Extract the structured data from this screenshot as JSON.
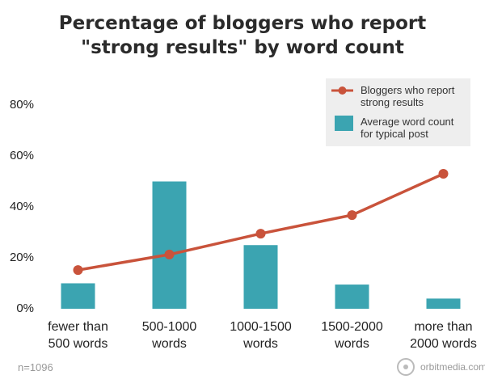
{
  "chart_data": {
    "type": "bar-line",
    "title": "Percentage of bloggers who report\n\"strong results\" by word count",
    "categories": [
      "fewer than\n500 words",
      "500-1000\nwords",
      "1000-1500\nwords",
      "1500-2000\nwords",
      "more than\n2000 words"
    ],
    "series": [
      {
        "name": "Average word count\nfor typical post",
        "type": "bar",
        "color": "#3ba4b1",
        "values": [
          10,
          50,
          25,
          9.5,
          4
        ]
      },
      {
        "name": "Bloggers who report\nstrong results",
        "type": "line",
        "color": "#c9533b",
        "values": [
          15.2,
          21.3,
          29.5,
          36.8,
          53
        ]
      }
    ],
    "ylim": [
      0,
      80
    ],
    "yticks": [
      {
        "value": 0,
        "label": "0%"
      },
      {
        "value": 20,
        "label": "20%"
      },
      {
        "value": 40,
        "label": "40%"
      },
      {
        "value": 60,
        "label": "60%"
      },
      {
        "value": 80,
        "label": "80%"
      }
    ],
    "grid": false,
    "legend": "top-right",
    "note": "n=1096",
    "source": "orbitmedia.com"
  }
}
